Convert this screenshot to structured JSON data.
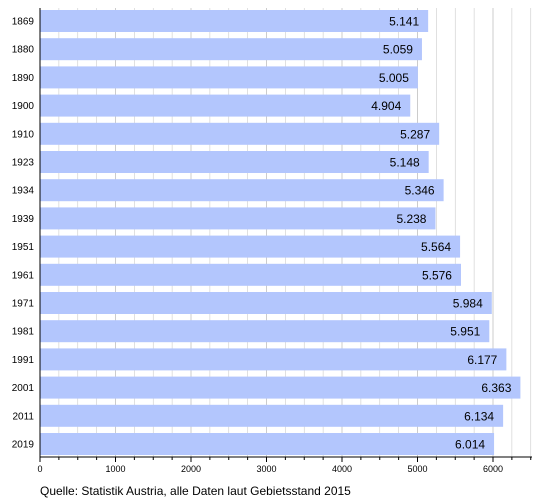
{
  "chart_data": {
    "type": "bar",
    "orientation": "horizontal",
    "categories": [
      "1869",
      "1880",
      "1890",
      "1900",
      "1910",
      "1923",
      "1934",
      "1939",
      "1951",
      "1961",
      "1971",
      "1981",
      "1991",
      "2001",
      "2011",
      "2019"
    ],
    "values": [
      5141,
      5059,
      5005,
      4904,
      5287,
      5148,
      5346,
      5238,
      5564,
      5576,
      5984,
      5951,
      6177,
      6363,
      6134,
      6014
    ],
    "value_labels": [
      "5.141",
      "5.059",
      "5.005",
      "4.904",
      "5.287",
      "5.148",
      "5.346",
      "5.238",
      "5.564",
      "5.576",
      "5.984",
      "5.951",
      "6.177",
      "6.363",
      "6.134",
      "6.014"
    ],
    "x_ticks": [
      0,
      1000,
      2000,
      3000,
      4000,
      5000,
      6000
    ],
    "xlim": [
      0,
      6500
    ],
    "grid": "vertical",
    "bar_color": "#b3c6fd",
    "grid_color": "#cccccc",
    "source": "Quelle: Statistik Austria, alle Daten laut Gebietsstand 2015"
  }
}
